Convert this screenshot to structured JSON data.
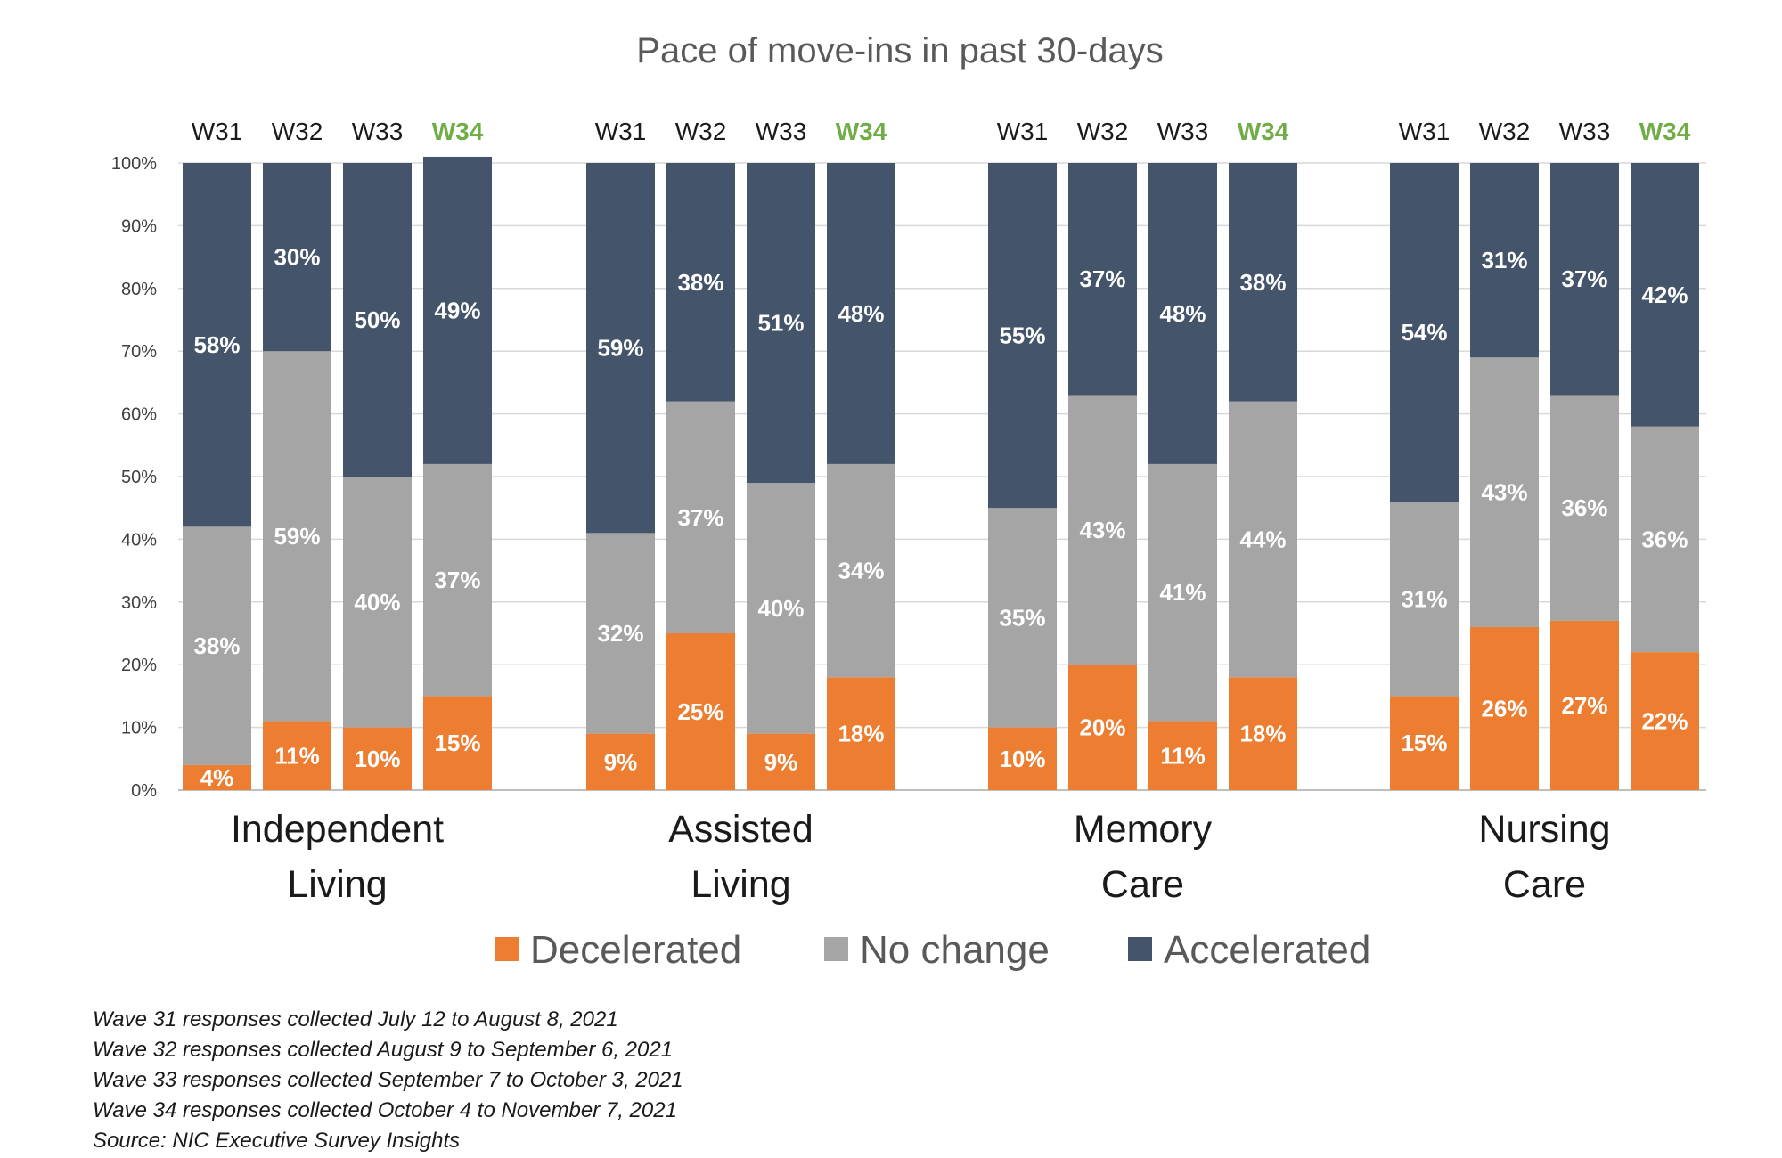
{
  "chart_data": {
    "type": "bar",
    "stacked": true,
    "percent": true,
    "title": "Pace of move-ins in past 30-days",
    "ylim": [
      0,
      100
    ],
    "yticks": [
      "0%",
      "10%",
      "20%",
      "30%",
      "40%",
      "50%",
      "60%",
      "70%",
      "80%",
      "90%",
      "100%"
    ],
    "waves": [
      "W31",
      "W32",
      "W33",
      "W34"
    ],
    "highlight_wave": "W34",
    "series": [
      {
        "name": "Decelerated",
        "color": "#ED7D31"
      },
      {
        "name": "No change",
        "color": "#A5A5A5"
      },
      {
        "name": "Accelerated",
        "color": "#44546A"
      }
    ],
    "groups": [
      {
        "name": "Independent Living",
        "label_lines": [
          "Independent",
          "Living"
        ],
        "decelerated": [
          4,
          11,
          10,
          15
        ],
        "no_change": [
          38,
          59,
          40,
          37
        ],
        "accelerated": [
          58,
          30,
          50,
          49
        ]
      },
      {
        "name": "Assisted Living",
        "label_lines": [
          "Assisted",
          "Living"
        ],
        "decelerated": [
          9,
          25,
          9,
          18
        ],
        "no_change": [
          32,
          37,
          40,
          34
        ],
        "accelerated": [
          59,
          38,
          51,
          48
        ]
      },
      {
        "name": "Memory Care",
        "label_lines": [
          "Memory",
          "Care"
        ],
        "decelerated": [
          10,
          20,
          11,
          18
        ],
        "no_change": [
          35,
          43,
          41,
          44
        ],
        "accelerated": [
          55,
          37,
          48,
          38
        ]
      },
      {
        "name": "Nursing Care",
        "label_lines": [
          "Nursing",
          "Care"
        ],
        "decelerated": [
          15,
          26,
          27,
          22
        ],
        "no_change": [
          31,
          43,
          36,
          36
        ],
        "accelerated": [
          54,
          31,
          37,
          42
        ]
      }
    ]
  },
  "notes": [
    "Wave 31 responses collected July 12 to August 8, 2021",
    "Wave 32 responses collected August 9 to September 6, 2021",
    "Wave 33 responses collected September 7 to October 3, 2021",
    "Wave 34 responses collected October 4 to November 7, 2021",
    "Source: NIC Executive Survey Insights"
  ]
}
